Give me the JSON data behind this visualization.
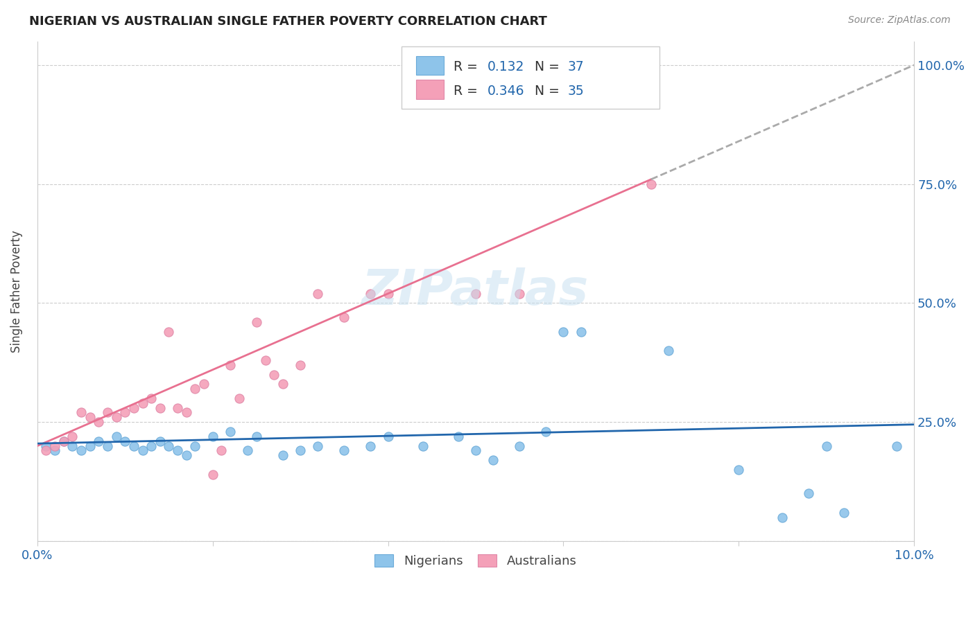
{
  "title": "NIGERIAN VS AUSTRALIAN SINGLE FATHER POVERTY CORRELATION CHART",
  "source": "Source: ZipAtlas.com",
  "ylabel": "Single Father Poverty",
  "nigerian_color": "#8ec4ea",
  "australian_color": "#f4a0b8",
  "nigerian_trend_color": "#2166ac",
  "australian_trend_color": "#e87090",
  "watermark": "ZIPatlas",
  "nigerians": [
    [
      0.001,
      0.2
    ],
    [
      0.002,
      0.19
    ],
    [
      0.003,
      0.21
    ],
    [
      0.004,
      0.2
    ],
    [
      0.005,
      0.19
    ],
    [
      0.006,
      0.2
    ],
    [
      0.007,
      0.21
    ],
    [
      0.008,
      0.2
    ],
    [
      0.009,
      0.22
    ],
    [
      0.01,
      0.21
    ],
    [
      0.011,
      0.2
    ],
    [
      0.012,
      0.19
    ],
    [
      0.013,
      0.2
    ],
    [
      0.014,
      0.21
    ],
    [
      0.015,
      0.2
    ],
    [
      0.016,
      0.19
    ],
    [
      0.017,
      0.18
    ],
    [
      0.018,
      0.2
    ],
    [
      0.02,
      0.22
    ],
    [
      0.022,
      0.23
    ],
    [
      0.024,
      0.19
    ],
    [
      0.025,
      0.22
    ],
    [
      0.028,
      0.18
    ],
    [
      0.03,
      0.19
    ],
    [
      0.032,
      0.2
    ],
    [
      0.035,
      0.19
    ],
    [
      0.038,
      0.2
    ],
    [
      0.04,
      0.22
    ],
    [
      0.044,
      0.2
    ],
    [
      0.048,
      0.22
    ],
    [
      0.05,
      0.19
    ],
    [
      0.052,
      0.17
    ],
    [
      0.055,
      0.2
    ],
    [
      0.058,
      0.23
    ],
    [
      0.06,
      0.44
    ],
    [
      0.062,
      0.44
    ],
    [
      0.072,
      0.4
    ],
    [
      0.08,
      0.15
    ],
    [
      0.085,
      0.05
    ],
    [
      0.088,
      0.1
    ],
    [
      0.09,
      0.2
    ],
    [
      0.092,
      0.06
    ],
    [
      0.098,
      0.2
    ]
  ],
  "australians": [
    [
      0.001,
      0.19
    ],
    [
      0.002,
      0.2
    ],
    [
      0.003,
      0.21
    ],
    [
      0.004,
      0.22
    ],
    [
      0.005,
      0.27
    ],
    [
      0.006,
      0.26
    ],
    [
      0.007,
      0.25
    ],
    [
      0.008,
      0.27
    ],
    [
      0.009,
      0.26
    ],
    [
      0.01,
      0.27
    ],
    [
      0.011,
      0.28
    ],
    [
      0.012,
      0.29
    ],
    [
      0.013,
      0.3
    ],
    [
      0.014,
      0.28
    ],
    [
      0.015,
      0.44
    ],
    [
      0.016,
      0.28
    ],
    [
      0.017,
      0.27
    ],
    [
      0.018,
      0.32
    ],
    [
      0.019,
      0.33
    ],
    [
      0.02,
      0.14
    ],
    [
      0.021,
      0.19
    ],
    [
      0.022,
      0.37
    ],
    [
      0.023,
      0.3
    ],
    [
      0.025,
      0.46
    ],
    [
      0.026,
      0.38
    ],
    [
      0.027,
      0.35
    ],
    [
      0.028,
      0.33
    ],
    [
      0.03,
      0.37
    ],
    [
      0.032,
      0.52
    ],
    [
      0.035,
      0.47
    ],
    [
      0.038,
      0.52
    ],
    [
      0.04,
      0.52
    ],
    [
      0.05,
      0.52
    ],
    [
      0.055,
      0.52
    ],
    [
      0.07,
      0.75
    ]
  ],
  "aus_trend_start_x": 0.0,
  "aus_trend_end_x": 0.07,
  "aus_trend_dash_end_x": 0.1,
  "aus_trend_y_at_0": 0.2,
  "aus_trend_y_at_007": 0.76,
  "nig_trend_y_at_0": 0.205,
  "nig_trend_y_at_010": 0.245,
  "xmin": 0.0,
  "xmax": 0.1,
  "ymin": 0.0,
  "ymax": 1.05,
  "yticks": [
    0.0,
    0.25,
    0.5,
    0.75,
    1.0
  ],
  "ytick_labels": [
    "",
    "25.0%",
    "50.0%",
    "75.0%",
    "100.0%"
  ],
  "xtick_labels_show": [
    "0.0%",
    "10.0%"
  ]
}
